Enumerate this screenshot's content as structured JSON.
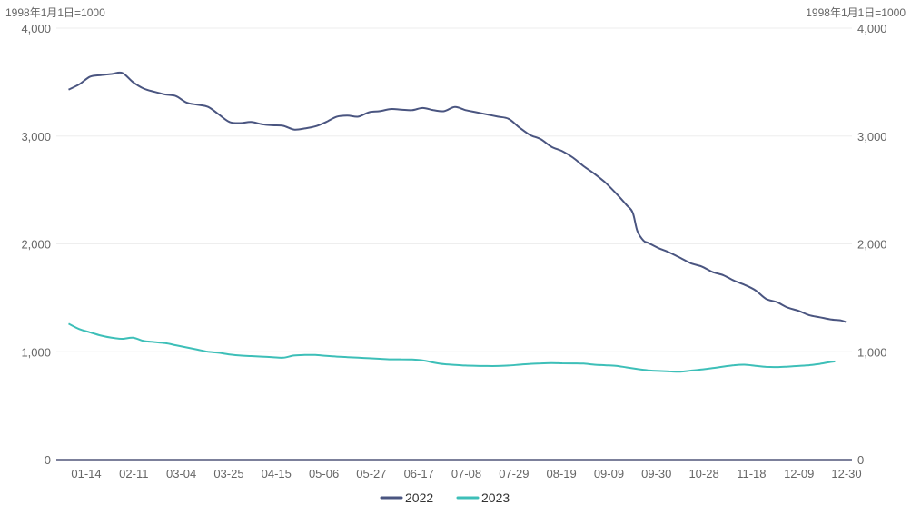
{
  "chart_data": {
    "type": "line",
    "unit_label_left": "1998年1月1日=1000",
    "unit_label_right": "1998年1月1日=1000",
    "y_ticks": [
      "0",
      "1,000",
      "2,000",
      "3,000",
      "4,000"
    ],
    "ylim": [
      0,
      4000
    ],
    "x_tick_labels": [
      "01-14",
      "02-11",
      "03-04",
      "03-25",
      "04-15",
      "05-06",
      "05-27",
      "06-17",
      "07-08",
      "07-29",
      "08-19",
      "09-09",
      "09-30",
      "10-28",
      "11-18",
      "12-09",
      "12-30"
    ],
    "legend_position": "bottom-center",
    "grid": true,
    "series": [
      {
        "name": "2022",
        "color": "#4a5580",
        "values": [
          [
            0,
            3430
          ],
          [
            7,
            3480
          ],
          [
            14,
            3550
          ],
          [
            21,
            3565
          ],
          [
            28,
            3575
          ],
          [
            35,
            3585
          ],
          [
            42,
            3500
          ],
          [
            49,
            3440
          ],
          [
            56,
            3410
          ],
          [
            63,
            3385
          ],
          [
            70,
            3370
          ],
          [
            77,
            3310
          ],
          [
            84,
            3290
          ],
          [
            91,
            3270
          ],
          [
            98,
            3200
          ],
          [
            105,
            3130
          ],
          [
            112,
            3120
          ],
          [
            119,
            3130
          ],
          [
            126,
            3110
          ],
          [
            133,
            3100
          ],
          [
            140,
            3095
          ],
          [
            147,
            3060
          ],
          [
            154,
            3070
          ],
          [
            161,
            3090
          ],
          [
            168,
            3130
          ],
          [
            175,
            3180
          ],
          [
            182,
            3190
          ],
          [
            189,
            3180
          ],
          [
            196,
            3220
          ],
          [
            203,
            3230
          ],
          [
            210,
            3250
          ],
          [
            217,
            3245
          ],
          [
            224,
            3240
          ],
          [
            231,
            3260
          ],
          [
            238,
            3240
          ],
          [
            245,
            3230
          ],
          [
            252,
            3270
          ],
          [
            259,
            3240
          ],
          [
            266,
            3220
          ],
          [
            273,
            3200
          ],
          [
            280,
            3180
          ],
          [
            287,
            3160
          ],
          [
            294,
            3080
          ],
          [
            301,
            3010
          ],
          [
            308,
            2970
          ],
          [
            315,
            2900
          ],
          [
            322,
            2860
          ],
          [
            329,
            2800
          ],
          [
            336,
            2720
          ],
          [
            343,
            2650
          ],
          [
            350,
            2570
          ],
          [
            357,
            2470
          ],
          [
            364,
            2360
          ],
          [
            368,
            2290
          ],
          [
            371,
            2120
          ],
          [
            375,
            2030
          ],
          [
            378,
            2010
          ],
          [
            385,
            1960
          ],
          [
            392,
            1920
          ],
          [
            399,
            1870
          ],
          [
            406,
            1820
          ],
          [
            413,
            1790
          ],
          [
            420,
            1740
          ],
          [
            427,
            1710
          ],
          [
            434,
            1660
          ],
          [
            441,
            1620
          ],
          [
            448,
            1570
          ],
          [
            455,
            1490
          ],
          [
            462,
            1460
          ],
          [
            469,
            1410
          ],
          [
            476,
            1380
          ],
          [
            483,
            1340
          ],
          [
            490,
            1320
          ],
          [
            497,
            1300
          ],
          [
            504,
            1290
          ],
          [
            507,
            1275
          ]
        ]
      },
      {
        "name": "2023",
        "color": "#3dbfb8",
        "values": [
          [
            0,
            1260
          ],
          [
            7,
            1210
          ],
          [
            14,
            1180
          ],
          [
            21,
            1150
          ],
          [
            28,
            1130
          ],
          [
            35,
            1120
          ],
          [
            42,
            1130
          ],
          [
            49,
            1100
          ],
          [
            56,
            1090
          ],
          [
            63,
            1080
          ],
          [
            70,
            1060
          ],
          [
            77,
            1040
          ],
          [
            84,
            1020
          ],
          [
            91,
            1000
          ],
          [
            98,
            990
          ],
          [
            105,
            975
          ],
          [
            112,
            965
          ],
          [
            119,
            960
          ],
          [
            126,
            955
          ],
          [
            133,
            950
          ],
          [
            140,
            945
          ],
          [
            147,
            965
          ],
          [
            154,
            970
          ],
          [
            161,
            970
          ],
          [
            168,
            962
          ],
          [
            175,
            955
          ],
          [
            182,
            950
          ],
          [
            189,
            945
          ],
          [
            196,
            940
          ],
          [
            203,
            935
          ],
          [
            210,
            930
          ],
          [
            217,
            930
          ],
          [
            224,
            928
          ],
          [
            231,
            920
          ],
          [
            238,
            900
          ],
          [
            245,
            885
          ],
          [
            252,
            878
          ],
          [
            259,
            872
          ],
          [
            266,
            870
          ],
          [
            273,
            868
          ],
          [
            280,
            868
          ],
          [
            287,
            872
          ],
          [
            294,
            880
          ],
          [
            301,
            888
          ],
          [
            308,
            892
          ],
          [
            315,
            895
          ],
          [
            322,
            893
          ],
          [
            329,
            892
          ],
          [
            336,
            890
          ],
          [
            343,
            880
          ],
          [
            350,
            875
          ],
          [
            357,
            870
          ],
          [
            364,
            855
          ],
          [
            371,
            840
          ],
          [
            378,
            828
          ],
          [
            385,
            822
          ],
          [
            392,
            818
          ],
          [
            399,
            815
          ],
          [
            406,
            825
          ],
          [
            413,
            835
          ],
          [
            420,
            848
          ],
          [
            427,
            862
          ],
          [
            434,
            875
          ],
          [
            441,
            880
          ],
          [
            448,
            870
          ],
          [
            455,
            860
          ],
          [
            462,
            858
          ],
          [
            469,
            862
          ],
          [
            476,
            868
          ],
          [
            483,
            875
          ],
          [
            490,
            888
          ],
          [
            497,
            905
          ],
          [
            500,
            910
          ]
        ]
      }
    ]
  }
}
